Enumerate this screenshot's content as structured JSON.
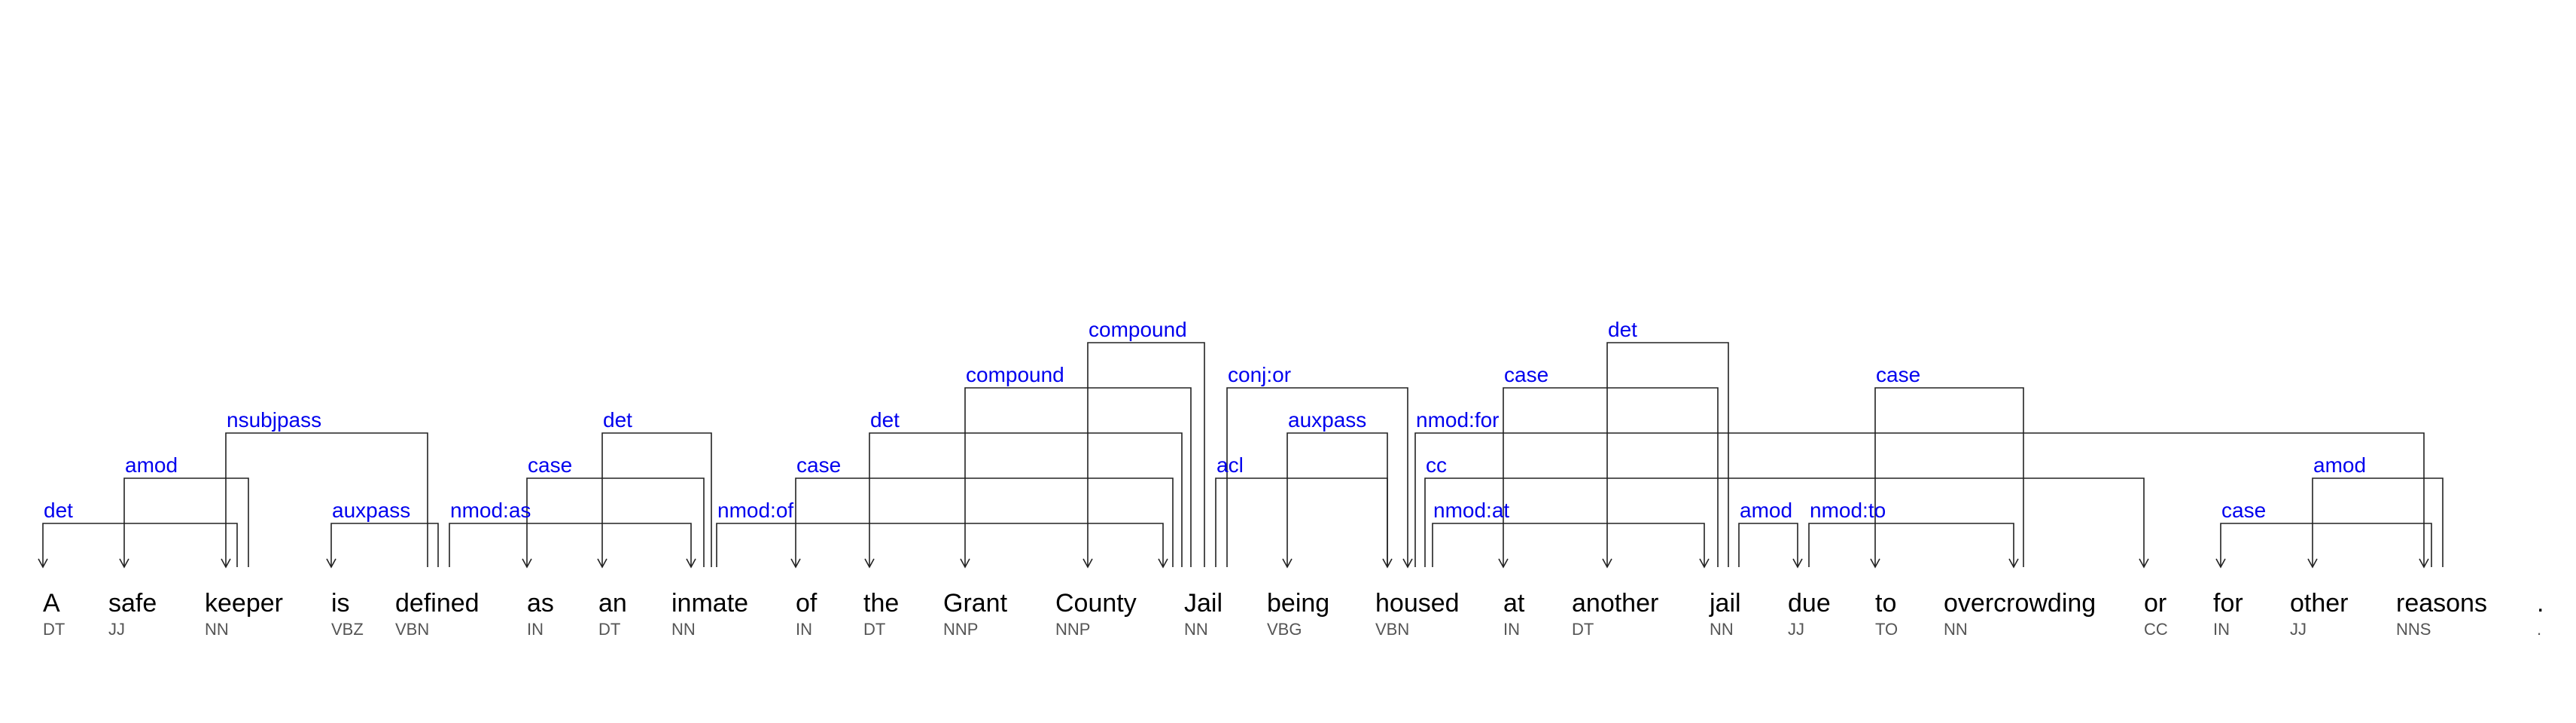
{
  "tokens": [
    {
      "word": "A",
      "tag": "DT"
    },
    {
      "word": "safe",
      "tag": "JJ"
    },
    {
      "word": "keeper",
      "tag": "NN"
    },
    {
      "word": "is",
      "tag": "VBZ"
    },
    {
      "word": "defined",
      "tag": "VBN"
    },
    {
      "word": "as",
      "tag": "IN"
    },
    {
      "word": "an",
      "tag": "DT"
    },
    {
      "word": "inmate",
      "tag": "NN"
    },
    {
      "word": "of",
      "tag": "IN"
    },
    {
      "word": "the",
      "tag": "DT"
    },
    {
      "word": "Grant",
      "tag": "NNP"
    },
    {
      "word": "County",
      "tag": "NNP"
    },
    {
      "word": "Jail",
      "tag": "NN"
    },
    {
      "word": "being",
      "tag": "VBG"
    },
    {
      "word": "housed",
      "tag": "VBN"
    },
    {
      "word": "at",
      "tag": "IN"
    },
    {
      "word": "another",
      "tag": "DT"
    },
    {
      "word": "jail",
      "tag": "NN"
    },
    {
      "word": "due",
      "tag": "JJ"
    },
    {
      "word": "to",
      "tag": "TO"
    },
    {
      "word": "overcrowding",
      "tag": "NN"
    },
    {
      "word": "or",
      "tag": "CC"
    },
    {
      "word": "for",
      "tag": "IN"
    },
    {
      "word": "other",
      "tag": "JJ"
    },
    {
      "word": "reasons",
      "tag": "NNS"
    },
    {
      "word": ".",
      "tag": "."
    }
  ],
  "dependencies": [
    {
      "head": 2,
      "dep": 0,
      "label": "det"
    },
    {
      "head": 2,
      "dep": 1,
      "label": "amod"
    },
    {
      "head": 4,
      "dep": 2,
      "label": "nsubjpass"
    },
    {
      "head": 4,
      "dep": 3,
      "label": "auxpass"
    },
    {
      "head": 7,
      "dep": 5,
      "label": "case"
    },
    {
      "head": 7,
      "dep": 6,
      "label": "det"
    },
    {
      "head": 4,
      "dep": 7,
      "label": "nmod:as"
    },
    {
      "head": 12,
      "dep": 8,
      "label": "case"
    },
    {
      "head": 12,
      "dep": 9,
      "label": "det"
    },
    {
      "head": 12,
      "dep": 10,
      "label": "compound"
    },
    {
      "head": 12,
      "dep": 11,
      "label": "compound"
    },
    {
      "head": 7,
      "dep": 12,
      "label": "nmod:of"
    },
    {
      "head": 14,
      "dep": 13,
      "label": "auxpass"
    },
    {
      "head": 12,
      "dep": 14,
      "label": "acl"
    },
    {
      "head": 17,
      "dep": 15,
      "label": "case"
    },
    {
      "head": 17,
      "dep": 16,
      "label": "det"
    },
    {
      "head": 14,
      "dep": 17,
      "label": "nmod:at"
    },
    {
      "head": 17,
      "dep": 18,
      "label": "amod"
    },
    {
      "head": 20,
      "dep": 19,
      "label": "case"
    },
    {
      "head": 18,
      "dep": 20,
      "label": "nmod:to"
    },
    {
      "head": 14,
      "dep": 21,
      "label": "cc"
    },
    {
      "head": 24,
      "dep": 22,
      "label": "case"
    },
    {
      "head": 24,
      "dep": 23,
      "label": "amod"
    },
    {
      "head": 14,
      "dep": 24,
      "label": "nmod:for"
    },
    {
      "head": 12,
      "dep": 14,
      "label": "conj:or"
    }
  ]
}
